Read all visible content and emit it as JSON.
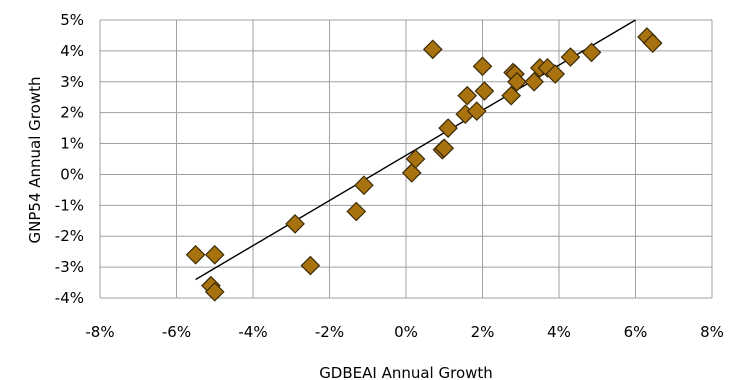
{
  "chart_data": {
    "type": "scatter",
    "title": "",
    "xlabel": "GDBEAI Annual Growth",
    "ylabel": "GNP54 Annual Growth",
    "xlim": [
      -8,
      8
    ],
    "ylim": [
      -4,
      5
    ],
    "x_ticks": [
      -8,
      -6,
      -4,
      -2,
      0,
      2,
      4,
      6,
      8
    ],
    "y_ticks": [
      -4,
      -3,
      -2,
      -1,
      0,
      1,
      2,
      3,
      4,
      5
    ],
    "x_tick_labels": [
      "-8%",
      "-6%",
      "-4%",
      "-2%",
      "0%",
      "2%",
      "4%",
      "6%",
      "8%"
    ],
    "y_tick_labels": [
      "-4%",
      "-3%",
      "-2%",
      "-1%",
      "0%",
      "1%",
      "2%",
      "3%",
      "4%",
      "5%"
    ],
    "grid": true,
    "marker_color": "#a8720f",
    "marker_edge_color": "#3b2a05",
    "marker": "diamond",
    "points": [
      [
        -5.5,
        -2.6
      ],
      [
        -5.0,
        -2.6
      ],
      [
        -5.1,
        -3.6
      ],
      [
        -5.0,
        -3.8
      ],
      [
        -2.9,
        -1.6
      ],
      [
        -2.5,
        -2.95
      ],
      [
        -1.3,
        -1.2
      ],
      [
        -1.1,
        -0.35
      ],
      [
        0.15,
        0.05
      ],
      [
        0.25,
        0.5
      ],
      [
        0.7,
        4.05
      ],
      [
        0.95,
        0.8
      ],
      [
        1.0,
        0.85
      ],
      [
        1.1,
        1.5
      ],
      [
        1.55,
        1.95
      ],
      [
        1.6,
        2.55
      ],
      [
        1.85,
        2.05
      ],
      [
        2.0,
        3.5
      ],
      [
        2.05,
        2.7
      ],
      [
        2.75,
        2.55
      ],
      [
        2.8,
        3.3
      ],
      [
        2.85,
        3.25
      ],
      [
        2.9,
        3.0
      ],
      [
        3.35,
        3.0
      ],
      [
        3.5,
        3.45
      ],
      [
        3.7,
        3.45
      ],
      [
        3.9,
        3.25
      ],
      [
        4.3,
        3.8
      ],
      [
        4.85,
        3.95
      ],
      [
        6.3,
        4.45
      ],
      [
        6.45,
        4.25
      ]
    ],
    "trendline": {
      "x": [
        -5.5,
        6.0
      ],
      "y": [
        -3.4,
        5.0
      ]
    }
  }
}
